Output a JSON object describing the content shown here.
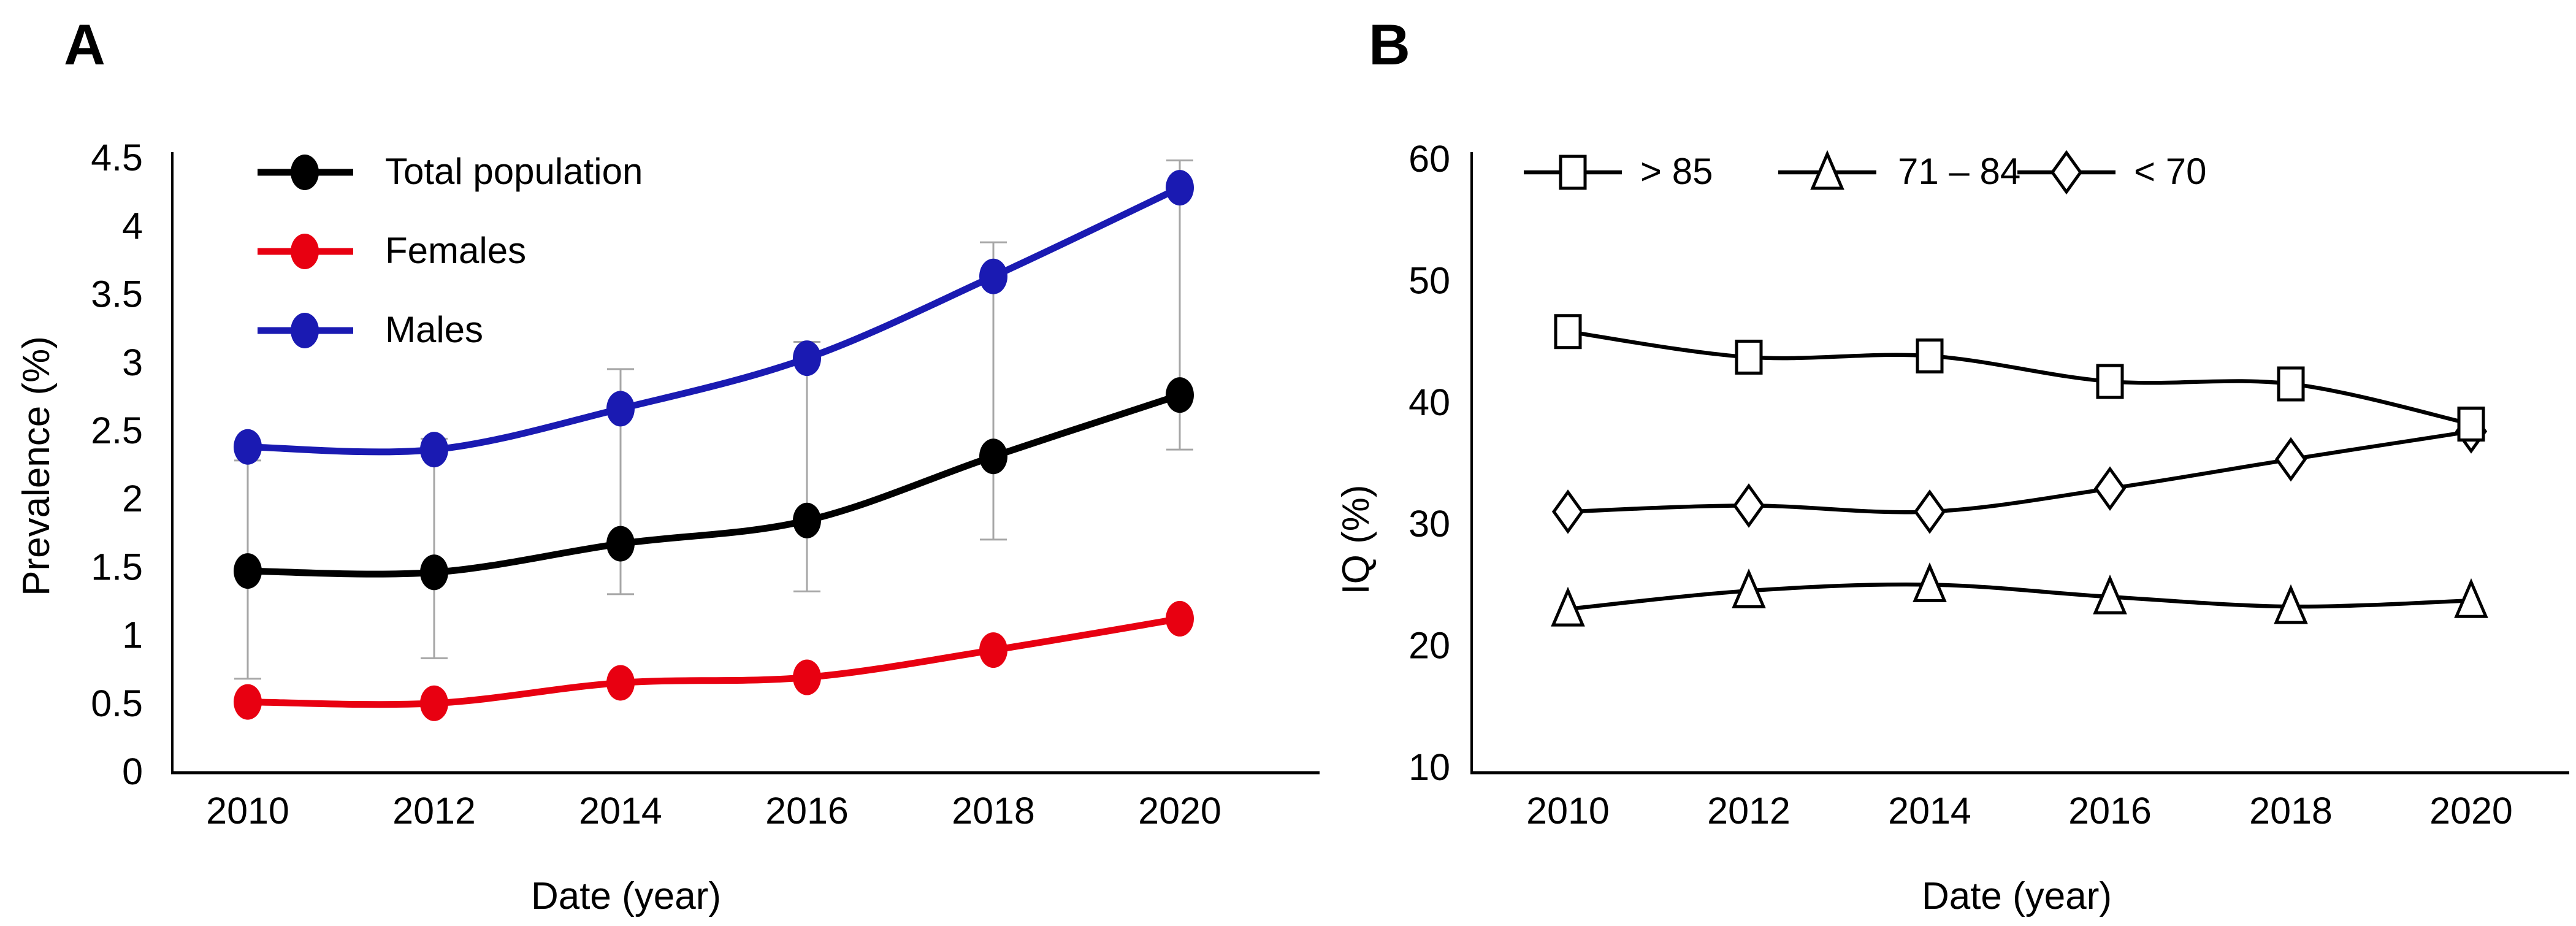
{
  "figure": {
    "background": "#ffffff",
    "panels": [
      {
        "letter": "A"
      },
      {
        "letter": "B"
      }
    ]
  },
  "chart_data": [
    {
      "type": "line",
      "panel": "A",
      "title": "",
      "xlabel": "Date (year)",
      "ylabel": "Prevalence (%)",
      "x": [
        2010,
        2012,
        2014,
        2016,
        2018,
        2020
      ],
      "x_tick_labels": [
        "2010",
        "2012",
        "2014",
        "2016",
        "2018",
        "2020"
      ],
      "y_ticks": [
        0,
        0.5,
        1,
        1.5,
        2,
        2.5,
        3,
        3.5,
        4,
        4.5
      ],
      "y_tick_labels": [
        "0",
        "0.5",
        "1",
        "1.5",
        "2",
        "2.5",
        "3",
        "3.5",
        "4",
        "4.5"
      ],
      "ylim": [
        0,
        4.5
      ],
      "grid": false,
      "legend_position": "inside-top-left",
      "line_style": "smooth",
      "series": [
        {
          "name": "Total population",
          "color": "#000000",
          "marker": "circle",
          "values": [
            1.47,
            1.46,
            1.67,
            1.84,
            2.31,
            2.76
          ]
        },
        {
          "name": "Females",
          "color": "#e80011",
          "marker": "circle",
          "values": [
            0.51,
            0.5,
            0.65,
            0.69,
            0.89,
            1.12
          ]
        },
        {
          "name": "Males",
          "color": "#1a1ab2",
          "marker": "circle",
          "values": [
            2.38,
            2.36,
            2.66,
            3.03,
            3.63,
            4.28
          ]
        }
      ],
      "error_bars": {
        "color": "#a6a6a6",
        "ranges": [
          [
            0.68,
            2.28
          ],
          [
            0.83,
            2.44
          ],
          [
            1.3,
            2.95
          ],
          [
            1.32,
            3.15
          ],
          [
            1.7,
            3.88
          ],
          [
            2.36,
            4.48
          ]
        ]
      }
    },
    {
      "type": "line",
      "panel": "B",
      "title": "",
      "xlabel": "Date (year)",
      "ylabel": "IQ (%)",
      "x": [
        2010,
        2012,
        2014,
        2016,
        2018,
        2020
      ],
      "x_tick_labels": [
        "2010",
        "2012",
        "2014",
        "2016",
        "2018",
        "2020"
      ],
      "y_ticks": [
        10,
        20,
        30,
        40,
        50,
        60
      ],
      "y_tick_labels": [
        "10",
        "20",
        "30",
        "40",
        "50",
        "60"
      ],
      "ylim": [
        10,
        60
      ],
      "grid": false,
      "legend_position": "inside-top",
      "line_style": "smooth",
      "series": [
        {
          "name": "> 85",
          "color": "#000000",
          "marker": "square",
          "values": [
            45.8,
            43.7,
            43.8,
            41.7,
            41.5,
            38.2
          ]
        },
        {
          "name": "71 – 84",
          "color": "#000000",
          "marker": "triangle",
          "values": [
            23.0,
            24.5,
            25.0,
            24.0,
            23.2,
            23.7
          ]
        },
        {
          "name": "< 70",
          "color": "#000000",
          "marker": "diamond",
          "values": [
            31.0,
            31.5,
            31.0,
            32.9,
            35.3,
            37.6
          ]
        }
      ]
    }
  ]
}
